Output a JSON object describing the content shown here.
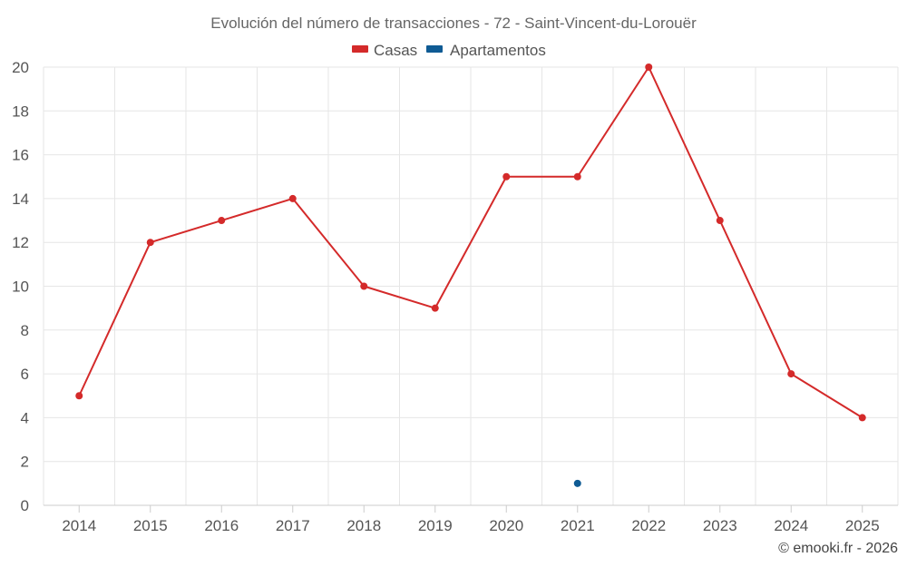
{
  "chart_data": {
    "type": "line",
    "title": "Evolución del número de transacciones - 72 - Saint-Vincent-du-Lorouër",
    "categories": [
      "2014",
      "2015",
      "2016",
      "2017",
      "2018",
      "2019",
      "2020",
      "2021",
      "2022",
      "2023",
      "2024",
      "2025"
    ],
    "series": [
      {
        "name": "Casas",
        "color": "#d42a2a",
        "values": [
          5,
          12,
          13,
          14,
          10,
          9,
          15,
          15,
          20,
          13,
          6,
          4
        ]
      },
      {
        "name": "Apartamentos",
        "color": "#0f5b94",
        "values": [
          null,
          null,
          null,
          null,
          null,
          null,
          null,
          1,
          null,
          null,
          null,
          null
        ]
      }
    ],
    "yticks": [
      "0",
      "2",
      "4",
      "6",
      "8",
      "10",
      "12",
      "14",
      "16",
      "18",
      "20"
    ],
    "ylim": [
      0,
      20
    ],
    "xlabel": "",
    "ylabel": "",
    "legend_position": "top-center",
    "grid": true
  },
  "credit": "© emooki.fr - 2026"
}
